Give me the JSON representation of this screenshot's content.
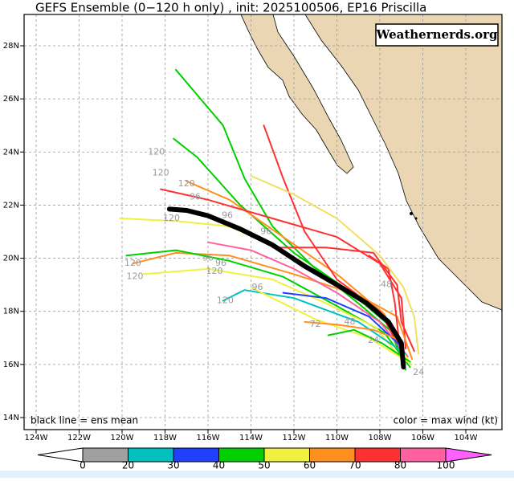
{
  "header": {
    "title": "GEFS Ensemble (0−120 h only) , init: 2025100506, EP16 Priscilla",
    "watermark": "Weathernerds.org"
  },
  "map": {
    "lon_ticks": [
      {
        "value": -124,
        "label": "124W"
      },
      {
        "value": -122,
        "label": "122W"
      },
      {
        "value": -120,
        "label": "120W"
      },
      {
        "value": -118,
        "label": "118W"
      },
      {
        "value": -116,
        "label": "116W"
      },
      {
        "value": -114,
        "label": "114W"
      },
      {
        "value": -112,
        "label": "112W"
      },
      {
        "value": -110,
        "label": "110W"
      },
      {
        "value": -108,
        "label": "108W"
      },
      {
        "value": -106,
        "label": "106W"
      },
      {
        "value": -104,
        "label": "104W"
      }
    ],
    "lat_ticks": [
      {
        "value": 14,
        "label": "14N"
      },
      {
        "value": 16,
        "label": "16N"
      },
      {
        "value": 18,
        "label": "18N"
      },
      {
        "value": 20,
        "label": "20N"
      },
      {
        "value": 22,
        "label": "22N"
      },
      {
        "value": 24,
        "label": "24N"
      },
      {
        "value": 26,
        "label": "26N"
      },
      {
        "value": 28,
        "label": "28N"
      }
    ],
    "member_tracks": [
      {
        "color": "#00d000",
        "points": [
          [
            -106.8,
            15.8
          ],
          [
            -107.4,
            17.2
          ],
          [
            -109,
            18.3
          ],
          [
            -111,
            19.6
          ],
          [
            -113,
            21.2
          ],
          [
            -114.3,
            23
          ],
          [
            -115.3,
            25
          ],
          [
            -117.5,
            27.1
          ]
        ]
      },
      {
        "color": "#00d000",
        "points": [
          [
            -106.9,
            16
          ],
          [
            -107.6,
            17.5
          ],
          [
            -109.5,
            18.8
          ],
          [
            -112,
            20.2
          ],
          [
            -114.5,
            22
          ],
          [
            -116.5,
            23.8
          ],
          [
            -117.6,
            24.5
          ]
        ]
      },
      {
        "color": "#f0f040",
        "points": [
          [
            -106.7,
            16.2
          ],
          [
            -107.5,
            17.6
          ],
          [
            -109.8,
            18.9
          ],
          [
            -112.5,
            20.3
          ],
          [
            -115,
            21.2
          ],
          [
            -117.5,
            21.4
          ],
          [
            -120.1,
            21.5
          ]
        ]
      },
      {
        "color": "#ff9020",
        "points": [
          [
            -106.9,
            16.4
          ],
          [
            -107.8,
            17.9
          ],
          [
            -110,
            19.4
          ],
          [
            -112.5,
            20.8
          ],
          [
            -115,
            22.2
          ],
          [
            -117,
            22.9
          ]
        ]
      },
      {
        "color": "#ff3030",
        "points": [
          [
            -107,
            16.5
          ],
          [
            -108,
            18
          ],
          [
            -110,
            19.2
          ],
          [
            -111.5,
            21
          ],
          [
            -112.5,
            23
          ],
          [
            -113.4,
            25
          ]
        ]
      },
      {
        "color": "#ff3030",
        "points": [
          [
            -106.8,
            16.6
          ],
          [
            -107,
            18.5
          ],
          [
            -108,
            19.8
          ],
          [
            -110,
            20.8
          ],
          [
            -113,
            21.5
          ],
          [
            -116,
            22.2
          ],
          [
            -118.2,
            22.6
          ]
        ]
      },
      {
        "color": "#ff9020",
        "points": [
          [
            -106.5,
            16.2
          ],
          [
            -107.2,
            17.8
          ],
          [
            -109,
            18.6
          ],
          [
            -112,
            19.4
          ],
          [
            -115,
            20.1
          ],
          [
            -117.5,
            20.2
          ],
          [
            -119.5,
            19.8
          ]
        ]
      },
      {
        "color": "#00d000",
        "points": [
          [
            -106.6,
            15.9
          ],
          [
            -107.8,
            17.2
          ],
          [
            -110,
            18.2
          ],
          [
            -112.5,
            19.3
          ],
          [
            -115,
            19.9
          ],
          [
            -117.5,
            20.3
          ],
          [
            -119.8,
            20.1
          ]
        ]
      },
      {
        "color": "#f0f040",
        "points": [
          [
            -106.9,
            16.1
          ],
          [
            -108.2,
            17.4
          ],
          [
            -110.5,
            18.3
          ],
          [
            -113,
            19.2
          ],
          [
            -116,
            19.6
          ],
          [
            -119,
            19.4
          ]
        ]
      },
      {
        "color": "#ff60a0",
        "points": [
          [
            -106.7,
            16.3
          ],
          [
            -108,
            17.6
          ],
          [
            -110,
            18.7
          ],
          [
            -112,
            19.6
          ],
          [
            -114,
            20.3
          ],
          [
            -116,
            20.6
          ]
        ]
      },
      {
        "color": "#ff3030",
        "points": [
          [
            -107.1,
            16.8
          ],
          [
            -107.3,
            18.3
          ],
          [
            -107.6,
            19.6
          ],
          [
            -108.5,
            20.1
          ]
        ]
      },
      {
        "color": "#2040ff",
        "points": [
          [
            -106.9,
            16.6
          ],
          [
            -108.5,
            17.8
          ],
          [
            -110.5,
            18.5
          ],
          [
            -112.5,
            18.7
          ]
        ]
      },
      {
        "color": "#00c0c0",
        "points": [
          [
            -106.8,
            16.4
          ],
          [
            -109,
            17.6
          ],
          [
            -112,
            18.5
          ],
          [
            -114.3,
            18.8
          ],
          [
            -115.3,
            18.4
          ]
        ]
      },
      {
        "color": "#f0f040",
        "points": [
          [
            -106.5,
            16
          ],
          [
            -108.5,
            17
          ],
          [
            -111,
            17.7
          ],
          [
            -112.5,
            18.3
          ],
          [
            -114,
            18.9
          ]
        ]
      },
      {
        "color": "#ff9020",
        "points": [
          [
            -107,
            16.9
          ],
          [
            -108.3,
            17.3
          ],
          [
            -110,
            17.5
          ],
          [
            -111.5,
            17.6
          ]
        ]
      },
      {
        "color": "#f0e060",
        "points": [
          [
            -106.2,
            16.4
          ],
          [
            -106.4,
            17.8
          ],
          [
            -106.9,
            18.9
          ],
          [
            -108,
            20.1
          ],
          [
            -110,
            21.5
          ],
          [
            -112,
            22.4
          ],
          [
            -114,
            23.1
          ]
        ]
      },
      {
        "color": "#00d000",
        "points": [
          [
            -106.6,
            16.1
          ],
          [
            -107.9,
            16.8
          ],
          [
            -109.2,
            17.3
          ],
          [
            -110.4,
            17.1
          ]
        ]
      },
      {
        "color": "#ff3030",
        "points": [
          [
            -106.4,
            16.5
          ],
          [
            -107,
            17.6
          ],
          [
            -107.2,
            19
          ],
          [
            -108.3,
            20.2
          ],
          [
            -110.5,
            20.4
          ],
          [
            -113,
            20.4
          ]
        ]
      }
    ],
    "mean_track": [
      [
        -106.9,
        15.9
      ],
      [
        -107,
        16.8
      ],
      [
        -107.6,
        17.6
      ],
      [
        -108.6,
        18.3
      ],
      [
        -110,
        19
      ],
      [
        -111.5,
        19.7
      ],
      [
        -113,
        20.5
      ],
      [
        -114.5,
        21.1
      ],
      [
        -116,
        21.6
      ],
      [
        -117,
        21.8
      ],
      [
        -117.8,
        21.85
      ]
    ],
    "hour_labels": [
      {
        "label": "120",
        "lon": -118.4,
        "lat": 24.0
      },
      {
        "label": "120",
        "lon": -118.2,
        "lat": 23.2
      },
      {
        "label": "120",
        "lon": -117.0,
        "lat": 22.8
      },
      {
        "label": "96",
        "lon": -116.6,
        "lat": 22.3
      },
      {
        "label": "96",
        "lon": -115.1,
        "lat": 21.6
      },
      {
        "label": "120",
        "lon": -117.7,
        "lat": 21.5
      },
      {
        "label": "96",
        "lon": -113.3,
        "lat": 21.0
      },
      {
        "label": "120",
        "lon": -119.5,
        "lat": 19.8
      },
      {
        "label": "120",
        "lon": -119.4,
        "lat": 19.3
      },
      {
        "label": "96",
        "lon": -116.0,
        "lat": 20.0
      },
      {
        "label": "96",
        "lon": -115.4,
        "lat": 19.8
      },
      {
        "label": "120",
        "lon": -115.7,
        "lat": 19.5
      },
      {
        "label": "120",
        "lon": -115.2,
        "lat": 18.4
      },
      {
        "label": "96",
        "lon": -113.7,
        "lat": 18.9
      },
      {
        "label": "72",
        "lon": -111.0,
        "lat": 17.5
      },
      {
        "label": "48",
        "lon": -107.7,
        "lat": 19.0
      },
      {
        "label": "48",
        "lon": -109.4,
        "lat": 17.6
      },
      {
        "label": "24",
        "lon": -108.3,
        "lat": 16.9
      },
      {
        "label": "24",
        "lon": -106.2,
        "lat": 15.7
      }
    ],
    "note_left": "black line = ens mean",
    "note_right": "color = max wind (kt)"
  },
  "colorbar": {
    "ticks": [
      0,
      20,
      30,
      40,
      50,
      60,
      70,
      80,
      100
    ],
    "below_color": "#ffffff",
    "colors": [
      "#a0a0a0",
      "#00c0c0",
      "#2040ff",
      "#00d000",
      "#f0f040",
      "#ff9020",
      "#ff3030",
      "#ff60a0"
    ],
    "above_color": "#ff60ff"
  }
}
